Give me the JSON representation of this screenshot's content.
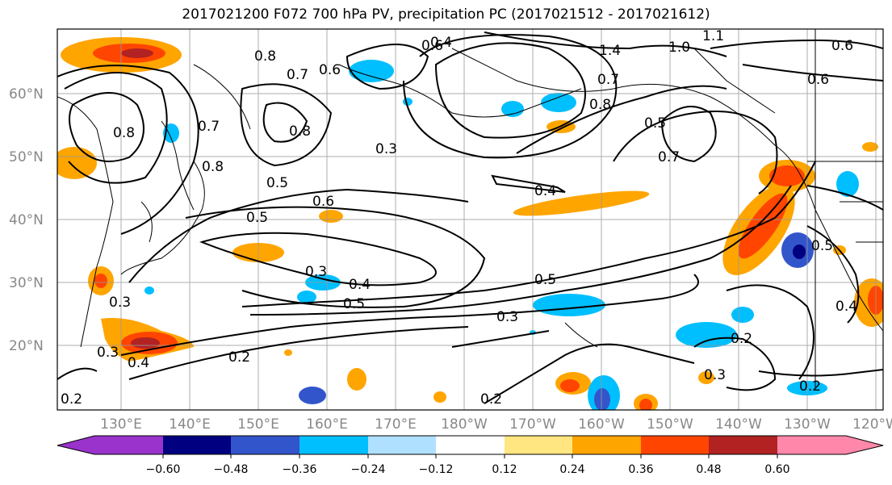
{
  "title": "2017021200 F072 700 hPa PV, precipitation PC (2017021512 - 2017021612)",
  "map": {
    "lat_labels": [
      "60°N",
      "50°N",
      "40°N",
      "30°N",
      "20°N"
    ],
    "lon_labels": [
      "130°E",
      "140°E",
      "150°E",
      "160°E",
      "170°E",
      "180°W",
      "170°W",
      "160°W",
      "150°W",
      "140°W",
      "130°W",
      "120°W"
    ],
    "contour_labels": [
      "0.6",
      "1.4",
      "1.0",
      "1.1",
      "0.6",
      "0.6",
      "0.8",
      "0.7",
      "0.6",
      "0.4",
      "0.7",
      "0.8",
      "0.5",
      "0.8",
      "0.7",
      "0.8",
      "0.5",
      "0.3",
      "0.5",
      "0.6",
      "0.8",
      "0.7",
      "0.4",
      "0.5",
      "0.3",
      "0.4",
      "0.5",
      "0.5",
      "0.3",
      "0.3",
      "0.4",
      "0.3",
      "0.2",
      "0.2",
      "0.2",
      "0.3",
      "0.4",
      "0.2",
      "0.2"
    ]
  },
  "colorbar": {
    "tick_labels": [
      "−0.60",
      "−0.48",
      "−0.36",
      "−0.24",
      "−0.12",
      "0.12",
      "0.24",
      "0.36",
      "0.48",
      "0.60"
    ],
    "colors": [
      "#9933cc",
      "#000080",
      "#3355cc",
      "#00bfff",
      "#b0e0ff",
      "#ffffff",
      "#ffe680",
      "#ffa500",
      "#ff4500",
      "#b22222",
      "#ff88aa"
    ]
  }
}
